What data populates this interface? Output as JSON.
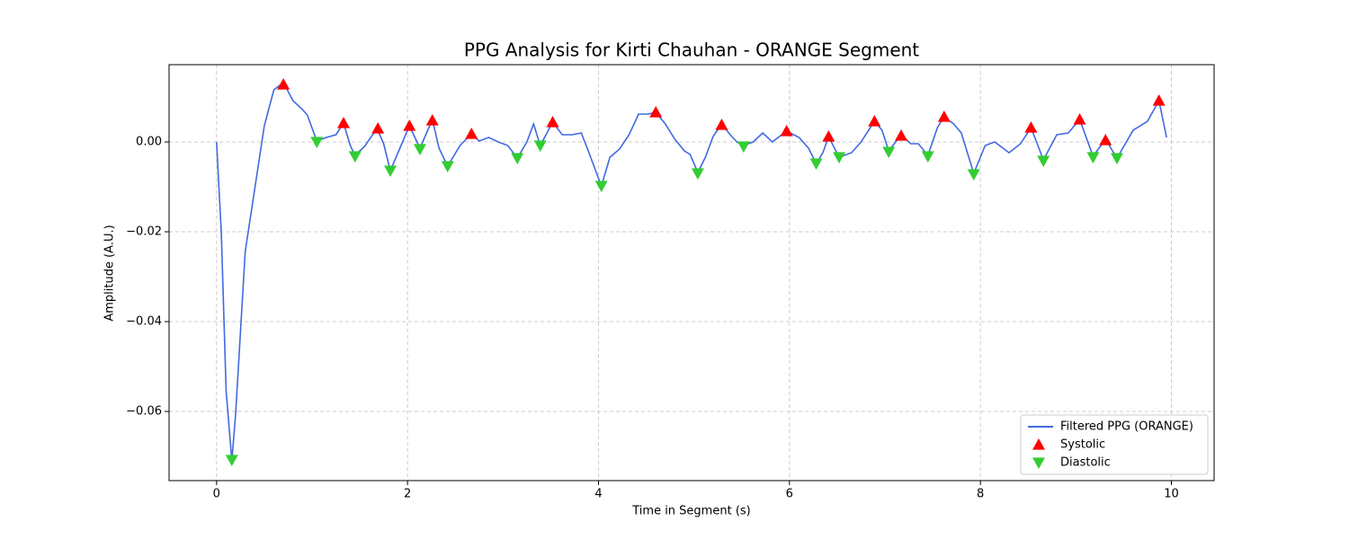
{
  "chart_data": {
    "type": "line",
    "title": "PPG Analysis for Kirti Chauhan - ORANGE Segment",
    "xlabel": "Time in Segment (s)",
    "ylabel": "Amplitude (A.U.)",
    "xlim": [
      -0.4975,
      10.4475
    ],
    "ylim": [
      -0.0754,
      0.0172
    ],
    "xticks": [
      0,
      2,
      4,
      6,
      8,
      10
    ],
    "yticks": [
      {
        "value": -0.06,
        "label": "−0.06"
      },
      {
        "value": -0.04,
        "label": "−0.04"
      },
      {
        "value": -0.02,
        "label": "−0.02"
      },
      {
        "value": 0,
        "label": "0.00"
      }
    ],
    "grid": true,
    "legend": "lower right",
    "series": [
      {
        "name": "Filtered PPG (ORANGE)",
        "kind": "line",
        "color": "#4169e1",
        "x": [
          0,
          0.05,
          0.1,
          0.16,
          0.2,
          0.3,
          0.4,
          0.5,
          0.6,
          0.7,
          0.8,
          0.9,
          0.95,
          1.05,
          1.15,
          1.25,
          1.33,
          1.4,
          1.45,
          1.55,
          1.68,
          1.75,
          1.82,
          1.9,
          2.02,
          2.13,
          2.26,
          2.33,
          2.42,
          2.55,
          2.67,
          2.75,
          2.85,
          2.95,
          3.05,
          3.15,
          3.25,
          3.32,
          3.39,
          3.52,
          3.62,
          3.72,
          3.82,
          3.9,
          4.03,
          4.12,
          4.22,
          4.32,
          4.42,
          4.52,
          4.6,
          4.7,
          4.8,
          4.9,
          4.96,
          5.04,
          5.12,
          5.2,
          5.29,
          5.38,
          5.45,
          5.52,
          5.62,
          5.72,
          5.82,
          5.97,
          6.1,
          6.2,
          6.28,
          6.35,
          6.41,
          6.52,
          6.65,
          6.75,
          6.89,
          6.97,
          7.04,
          7.17,
          7.27,
          7.35,
          7.45,
          7.55,
          7.62,
          7.72,
          7.8,
          7.93,
          8.05,
          8.15,
          8.3,
          8.42,
          8.53,
          8.66,
          8.8,
          8.92,
          9.04,
          9.18,
          9.31,
          9.43,
          9.6,
          9.75,
          9.87,
          9.95
        ],
        "values": [
          0,
          -0.0204,
          -0.0554,
          -0.071,
          -0.0604,
          -0.0244,
          -0.0104,
          0.0036,
          0.0116,
          0.0132,
          0.0092,
          0.0072,
          0.006,
          0.0002,
          0.001,
          0.0016,
          0.0042,
          -0.0008,
          -0.003,
          -0.001,
          0.003,
          -0.0004,
          -0.0064,
          -0.0024,
          0.0036,
          -0.0014,
          0.005,
          -0.0014,
          -0.0054,
          -0.0008,
          0.0018,
          0.0002,
          0.001,
          0,
          -0.0008,
          -0.0036,
          0,
          0.004,
          -0.0008,
          0.0044,
          0.0016,
          0.0016,
          0.002,
          -0.0024,
          -0.0098,
          -0.0034,
          -0.0016,
          0.0016,
          0.0062,
          0.0062,
          0.0066,
          0.004,
          0.0006,
          -0.002,
          -0.0028,
          -0.0068,
          -0.0034,
          0.0012,
          0.004,
          0.0016,
          0,
          -0.0008,
          0,
          0.002,
          0,
          0.0024,
          0.001,
          -0.0014,
          -0.0048,
          -0.0024,
          0.0012,
          -0.0034,
          -0.0024,
          0,
          0.0046,
          0.0026,
          -0.002,
          0.0016,
          -0.0004,
          -0.0004,
          -0.003,
          0.0032,
          0.0056,
          0.004,
          0.002,
          -0.007,
          -0.0008,
          0,
          -0.0024,
          -0.0004,
          0.0032,
          -0.004,
          0.0016,
          0.002,
          0.005,
          -0.0032,
          0.0006,
          -0.0036,
          0.0026,
          0.0046,
          0.0092,
          0.001
        ]
      },
      {
        "name": "Systolic",
        "kind": "scatter",
        "marker": "up",
        "color": "#ff0000",
        "x": [
          0.7,
          1.33,
          1.69,
          2.02,
          2.26,
          2.67,
          3.52,
          4.6,
          5.29,
          5.97,
          6.41,
          6.89,
          7.17,
          7.62,
          8.53,
          9.04,
          9.31,
          9.87
        ],
        "values": [
          0.0128,
          0.0042,
          0.003,
          0.0036,
          0.0048,
          0.0018,
          0.0044,
          0.0066,
          0.0038,
          0.0024,
          0.0012,
          0.0046,
          0.0014,
          0.0056,
          0.0032,
          0.005,
          0.0004,
          0.0092
        ]
      },
      {
        "name": "Diastolic",
        "kind": "scatter",
        "marker": "down",
        "color": "#32cd32",
        "x": [
          0.16,
          1.05,
          1.45,
          1.82,
          2.13,
          2.42,
          3.15,
          3.39,
          4.03,
          5.04,
          5.52,
          6.28,
          6.52,
          7.04,
          7.45,
          7.93,
          8.66,
          9.18,
          9.43
        ],
        "values": [
          -0.0708,
          0,
          -0.0032,
          -0.0064,
          -0.0016,
          -0.0054,
          -0.0036,
          -0.0008,
          -0.0098,
          -0.007,
          -0.001,
          -0.0048,
          -0.0034,
          -0.0022,
          -0.0032,
          -0.0072,
          -0.0042,
          -0.0034,
          -0.0036
        ]
      }
    ]
  }
}
